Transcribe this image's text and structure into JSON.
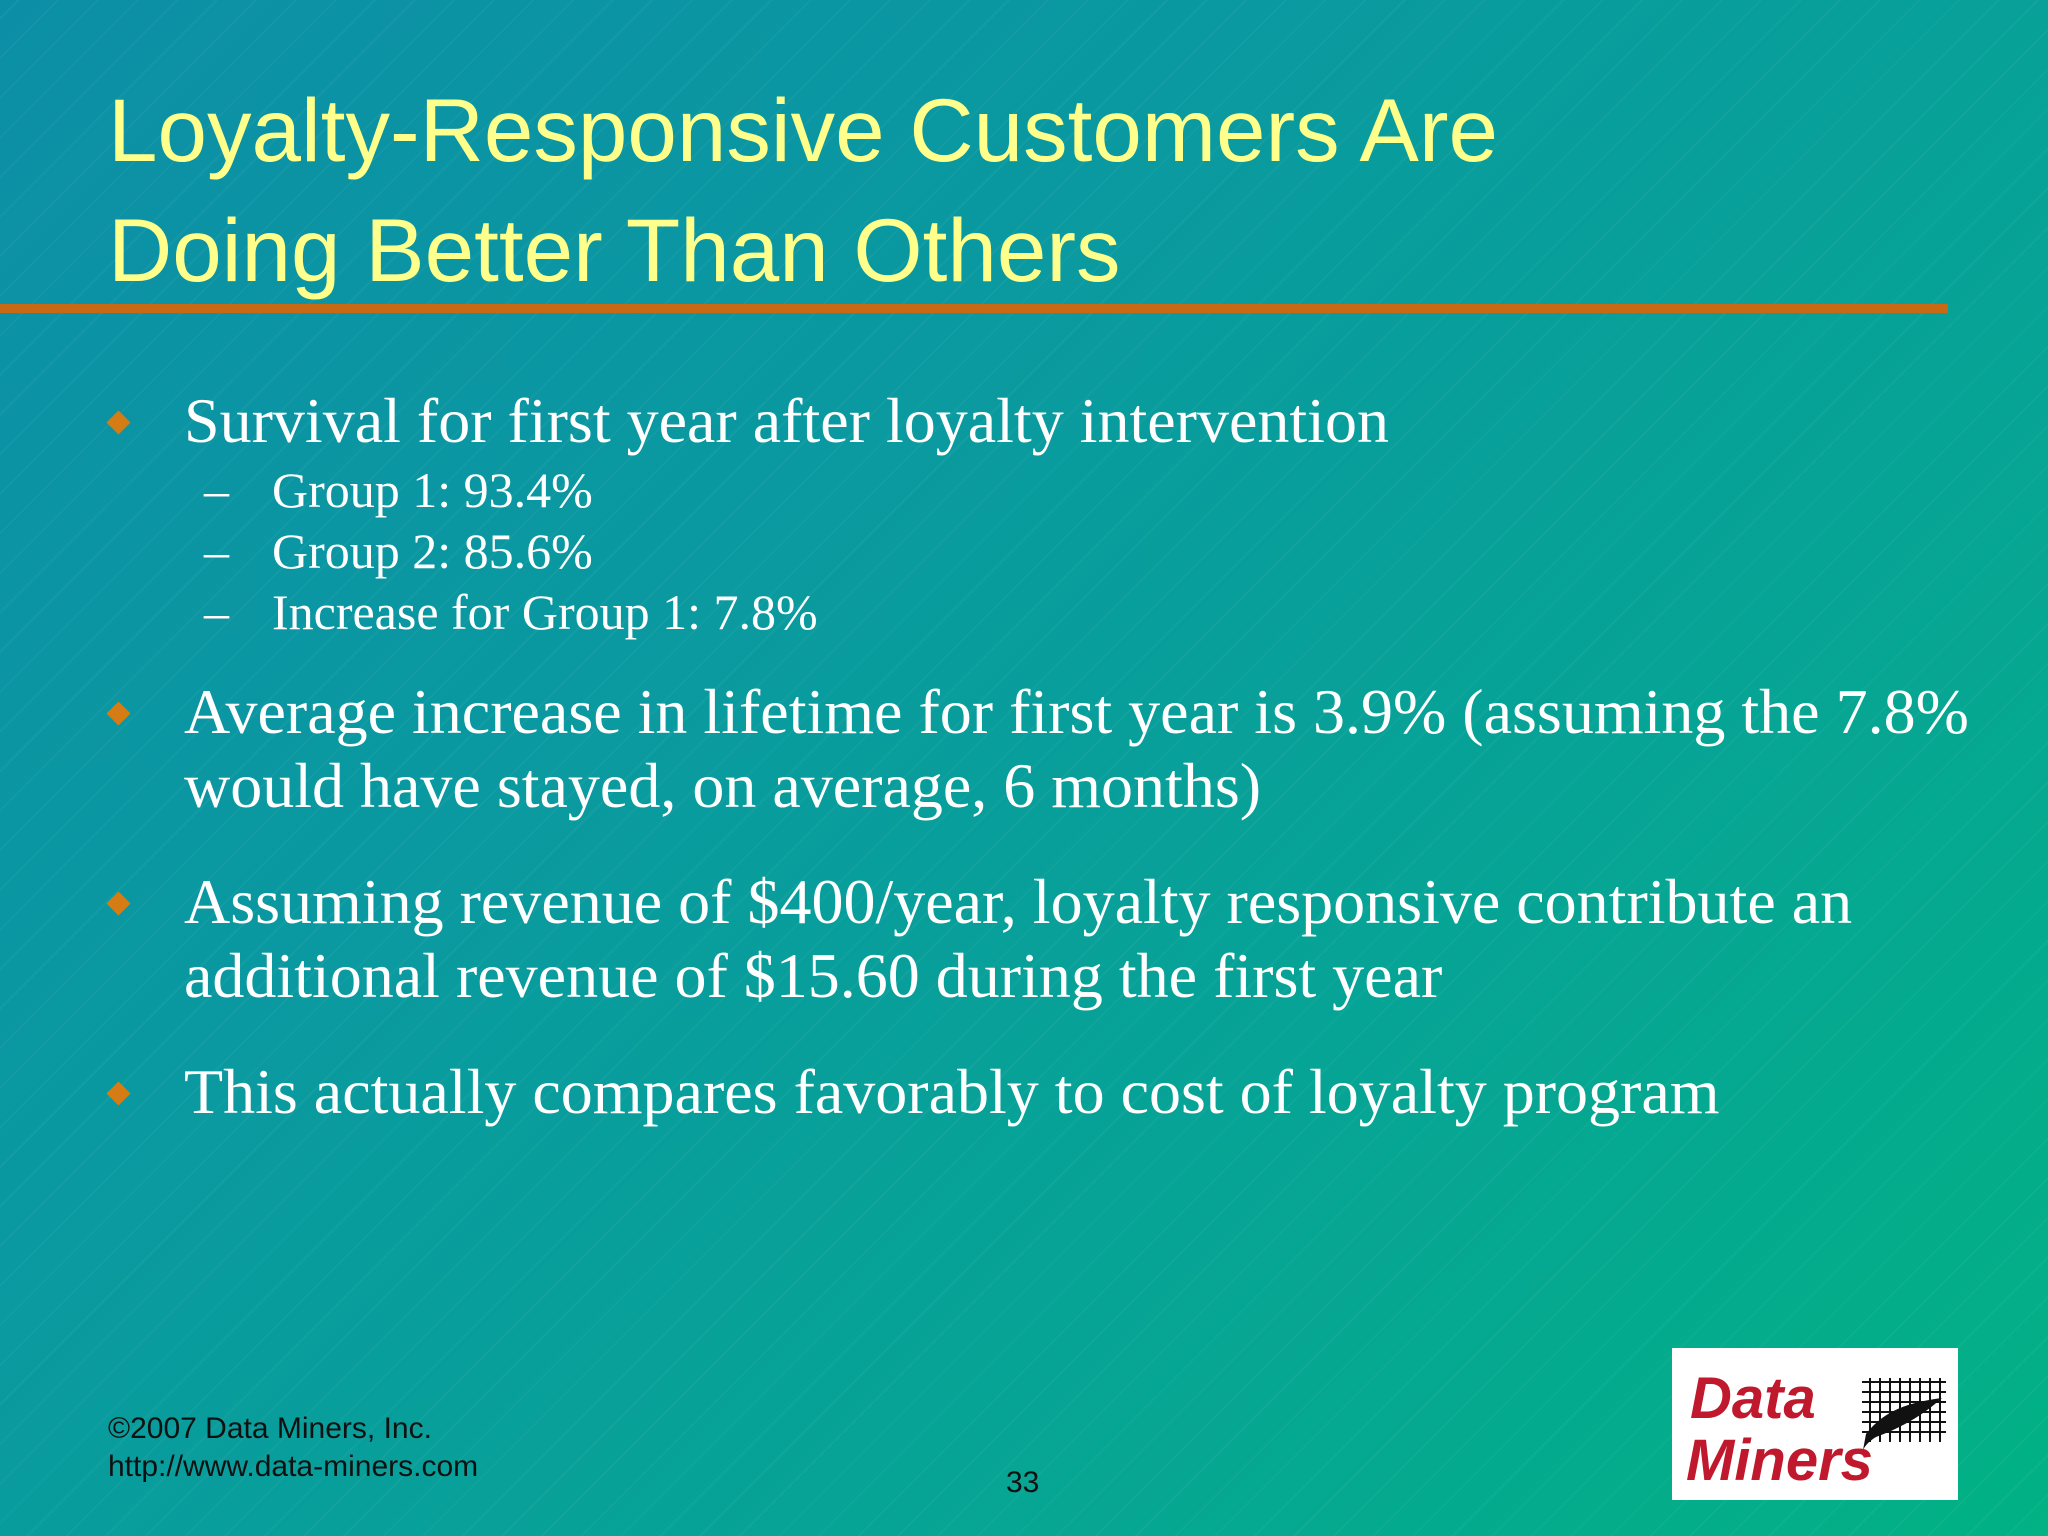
{
  "slide": {
    "title_line_1": "Loyalty-Responsive Customers Are",
    "title_line_2": "Doing Better Than Others",
    "bullets": [
      {
        "text": "Survival for first year after loyalty intervention",
        "subitems": [
          {
            "dash": "–",
            "text": "Group 1: 93.4%"
          },
          {
            "dash": "–",
            "text": "Group 2:  85.6%"
          },
          {
            "dash": "–",
            "text": "Increase for Group 1:  7.8%"
          }
        ]
      },
      {
        "text": "Average increase in lifetime for first year is 3.9% (assuming the 7.8% would have stayed, on average, 6 months)"
      },
      {
        "text": "Assuming revenue of $400/year, loyalty responsive contribute an additional revenue of $15.60 during the first year"
      },
      {
        "text": "This actually compares favorably to cost of loyalty program"
      }
    ],
    "footer": {
      "copyright": "©2007 Data Miners, Inc.",
      "url": "http://www.data-miners.com"
    },
    "page_number": "33",
    "logo": {
      "line_1": "Data",
      "line_2": "Miners"
    }
  },
  "colors": {
    "background_start": "#0c8fa6",
    "background_end": "#02b184",
    "title": "#ffff8c",
    "rule_and_bullets": "#c86a15",
    "body_text": "#ffffff",
    "logo_text": "#c0182d"
  },
  "icons": {
    "bullet": "orange-diamond-bullet-icon",
    "sub_bullet": "dash",
    "logo_mark": "quill-grid-icon"
  }
}
